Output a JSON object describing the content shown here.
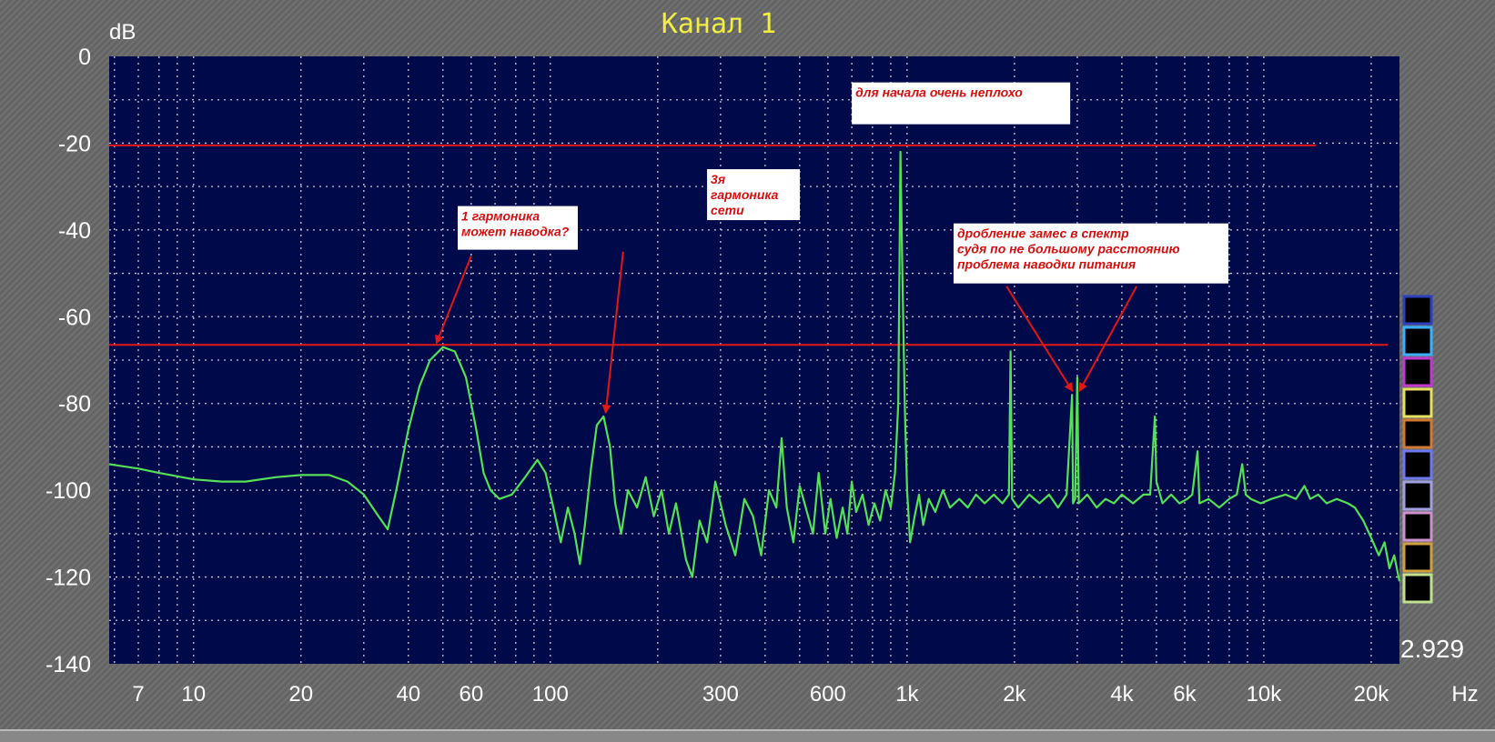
{
  "chart_data": {
    "type": "line",
    "title": "Канал 1",
    "ylabel": "dB",
    "xunit": "Hz",
    "ylim": [
      -140,
      0
    ],
    "xlim": [
      5.8,
      24000
    ],
    "xscale": "log",
    "grid": true,
    "y_ticks": [
      "0",
      "-20",
      "-40",
      "-60",
      "-80",
      "-100",
      "-120",
      "-140"
    ],
    "x_ticks": [
      {
        "f": 7,
        "label": "7"
      },
      {
        "f": 10,
        "label": "10"
      },
      {
        "f": 20,
        "label": "20"
      },
      {
        "f": 40,
        "label": "40"
      },
      {
        "f": 60,
        "label": "60"
      },
      {
        "f": 100,
        "label": "100"
      },
      {
        "f": 300,
        "label": "300"
      },
      {
        "f": 600,
        "label": "600"
      },
      {
        "f": 1000,
        "label": "1k"
      },
      {
        "f": 2000,
        "label": "2k"
      },
      {
        "f": 4000,
        "label": "4k"
      },
      {
        "f": 6000,
        "label": "6k"
      },
      {
        "f": 10000,
        "label": "10k"
      },
      {
        "f": 20000,
        "label": "20k"
      }
    ],
    "series": [
      {
        "color": "#55e055",
        "points": [
          [
            5.8,
            -94
          ],
          [
            7,
            -95
          ],
          [
            8,
            -96
          ],
          [
            10,
            -97.5
          ],
          [
            12,
            -98
          ],
          [
            14,
            -98
          ],
          [
            17,
            -97
          ],
          [
            20,
            -96.5
          ],
          [
            24,
            -96.5
          ],
          [
            27,
            -98
          ],
          [
            30,
            -101
          ],
          [
            33,
            -106
          ],
          [
            35,
            -109
          ],
          [
            37,
            -100
          ],
          [
            40,
            -86
          ],
          [
            43,
            -76
          ],
          [
            46,
            -70
          ],
          [
            50,
            -67
          ],
          [
            54,
            -68
          ],
          [
            58,
            -74
          ],
          [
            62,
            -86
          ],
          [
            65,
            -96
          ],
          [
            68,
            -100
          ],
          [
            72,
            -102
          ],
          [
            78,
            -101
          ],
          [
            85,
            -97
          ],
          [
            92,
            -93
          ],
          [
            97,
            -96
          ],
          [
            102,
            -104
          ],
          [
            107,
            -112
          ],
          [
            112,
            -104
          ],
          [
            117,
            -110
          ],
          [
            121,
            -117
          ],
          [
            125,
            -108
          ],
          [
            130,
            -95
          ],
          [
            135,
            -85
          ],
          [
            141,
            -83
          ],
          [
            147,
            -90
          ],
          [
            152,
            -103
          ],
          [
            158,
            -110
          ],
          [
            165,
            -100
          ],
          [
            175,
            -104
          ],
          [
            185,
            -97
          ],
          [
            195,
            -106
          ],
          [
            205,
            -100
          ],
          [
            215,
            -110
          ],
          [
            225,
            -103
          ],
          [
            240,
            -116
          ],
          [
            250,
            -120
          ],
          [
            262,
            -107
          ],
          [
            275,
            -112
          ],
          [
            290,
            -98
          ],
          [
            310,
            -108
          ],
          [
            330,
            -115
          ],
          [
            350,
            -102
          ],
          [
            370,
            -106
          ],
          [
            390,
            -115
          ],
          [
            410,
            -100
          ],
          [
            430,
            -104
          ],
          [
            445,
            -88
          ],
          [
            460,
            -104
          ],
          [
            480,
            -112
          ],
          [
            500,
            -99
          ],
          [
            520,
            -104
          ],
          [
            545,
            -110
          ],
          [
            565,
            -96
          ],
          [
            590,
            -110
          ],
          [
            610,
            -102
          ],
          [
            635,
            -111
          ],
          [
            660,
            -104
          ],
          [
            680,
            -110
          ],
          [
            700,
            -98
          ],
          [
            720,
            -105
          ],
          [
            750,
            -101
          ],
          [
            780,
            -108
          ],
          [
            810,
            -103
          ],
          [
            840,
            -107
          ],
          [
            870,
            -100
          ],
          [
            900,
            -104
          ],
          [
            925,
            -96
          ],
          [
            945,
            -80
          ],
          [
            958,
            -22
          ],
          [
            970,
            -50
          ],
          [
            985,
            -80
          ],
          [
            1000,
            -100
          ],
          [
            1020,
            -112
          ],
          [
            1050,
            -106
          ],
          [
            1080,
            -101
          ],
          [
            1110,
            -108
          ],
          [
            1150,
            -102
          ],
          [
            1200,
            -105
          ],
          [
            1260,
            -100
          ],
          [
            1320,
            -104
          ],
          [
            1400,
            -102
          ],
          [
            1480,
            -104
          ],
          [
            1560,
            -101
          ],
          [
            1650,
            -103
          ],
          [
            1750,
            -101
          ],
          [
            1850,
            -103
          ],
          [
            1930,
            -101
          ],
          [
            1950,
            -68
          ],
          [
            1970,
            -102
          ],
          [
            2050,
            -104
          ],
          [
            2200,
            -101
          ],
          [
            2350,
            -103
          ],
          [
            2500,
            -101
          ],
          [
            2650,
            -104
          ],
          [
            2800,
            -101
          ],
          [
            2900,
            -78
          ],
          [
            2920,
            -103
          ],
          [
            2960,
            -102
          ],
          [
            3000,
            -74
          ],
          [
            3030,
            -103
          ],
          [
            3200,
            -101
          ],
          [
            3400,
            -104
          ],
          [
            3600,
            -102
          ],
          [
            3800,
            -103
          ],
          [
            4000,
            -101
          ],
          [
            4300,
            -103
          ],
          [
            4600,
            -101
          ],
          [
            4800,
            -101
          ],
          [
            4950,
            -83
          ],
          [
            5000,
            -98
          ],
          [
            5200,
            -103
          ],
          [
            5500,
            -101
          ],
          [
            5800,
            -103
          ],
          [
            6100,
            -102
          ],
          [
            6300,
            -101
          ],
          [
            6520,
            -91
          ],
          [
            6600,
            -103
          ],
          [
            7000,
            -102
          ],
          [
            7500,
            -104
          ],
          [
            8000,
            -102
          ],
          [
            8400,
            -101
          ],
          [
            8700,
            -94
          ],
          [
            8900,
            -101
          ],
          [
            9200,
            -102
          ],
          [
            9800,
            -103
          ],
          [
            10500,
            -102
          ],
          [
            11500,
            -101
          ],
          [
            12300,
            -102
          ],
          [
            13000,
            -99
          ],
          [
            13500,
            -102
          ],
          [
            14200,
            -101
          ],
          [
            15000,
            -103
          ],
          [
            16000,
            -102
          ],
          [
            17200,
            -103
          ],
          [
            18000,
            -104
          ],
          [
            19000,
            -107
          ],
          [
            20000,
            -111
          ],
          [
            21000,
            -115
          ],
          [
            21800,
            -112
          ],
          [
            22500,
            -118
          ],
          [
            23200,
            -115
          ],
          [
            24000,
            -121
          ]
        ]
      }
    ],
    "reference_lines": [
      {
        "y": -20.5,
        "f_start": 5.8,
        "f_end": 14000
      },
      {
        "y": -66.5,
        "f_start": 5.8,
        "f_end": 22300
      }
    ],
    "annotations": [
      {
        "lines": [
          "для начала очень неплохо"
        ],
        "f": 700,
        "y": -6,
        "w": 240,
        "h": 46,
        "arrows": []
      },
      {
        "lines": [
          "3я",
          "гармоника",
          "сети"
        ],
        "f": 275,
        "y": -26,
        "w": 102,
        "h": 56,
        "arrows": [
          {
            "from": [
              160,
              -45
            ],
            "to": [
              143,
              -82
            ]
          }
        ]
      },
      {
        "lines": [
          "1 гармоника",
          "может наводка?"
        ],
        "f": 55,
        "y": -34.5,
        "w": 132,
        "h": 48,
        "arrows": [
          {
            "from": [
              60,
              -46
            ],
            "to": [
              48,
              -66
            ]
          }
        ]
      },
      {
        "lines": [
          "дробление замес в спектр",
          "судя по не большому расстоянию",
          "проблема наводки питания"
        ],
        "f": 1350,
        "y": -38.5,
        "w": 302,
        "h": 66,
        "arrows": [
          {
            "from": [
              1900,
              -53
            ],
            "to": [
              2900,
              -77
            ]
          },
          {
            "from": [
              4400,
              -53
            ],
            "to": [
              3050,
              -77
            ]
          }
        ]
      }
    ],
    "legend_swatches": [
      "#2b3fbf",
      "#3ab0ff",
      "#c03ad0",
      "#e8e060",
      "#d27a30",
      "#6e78f0",
      "#a0a0e0",
      "#d090d0",
      "#d0a040",
      "#c0e090"
    ],
    "readout": "2.929"
  }
}
